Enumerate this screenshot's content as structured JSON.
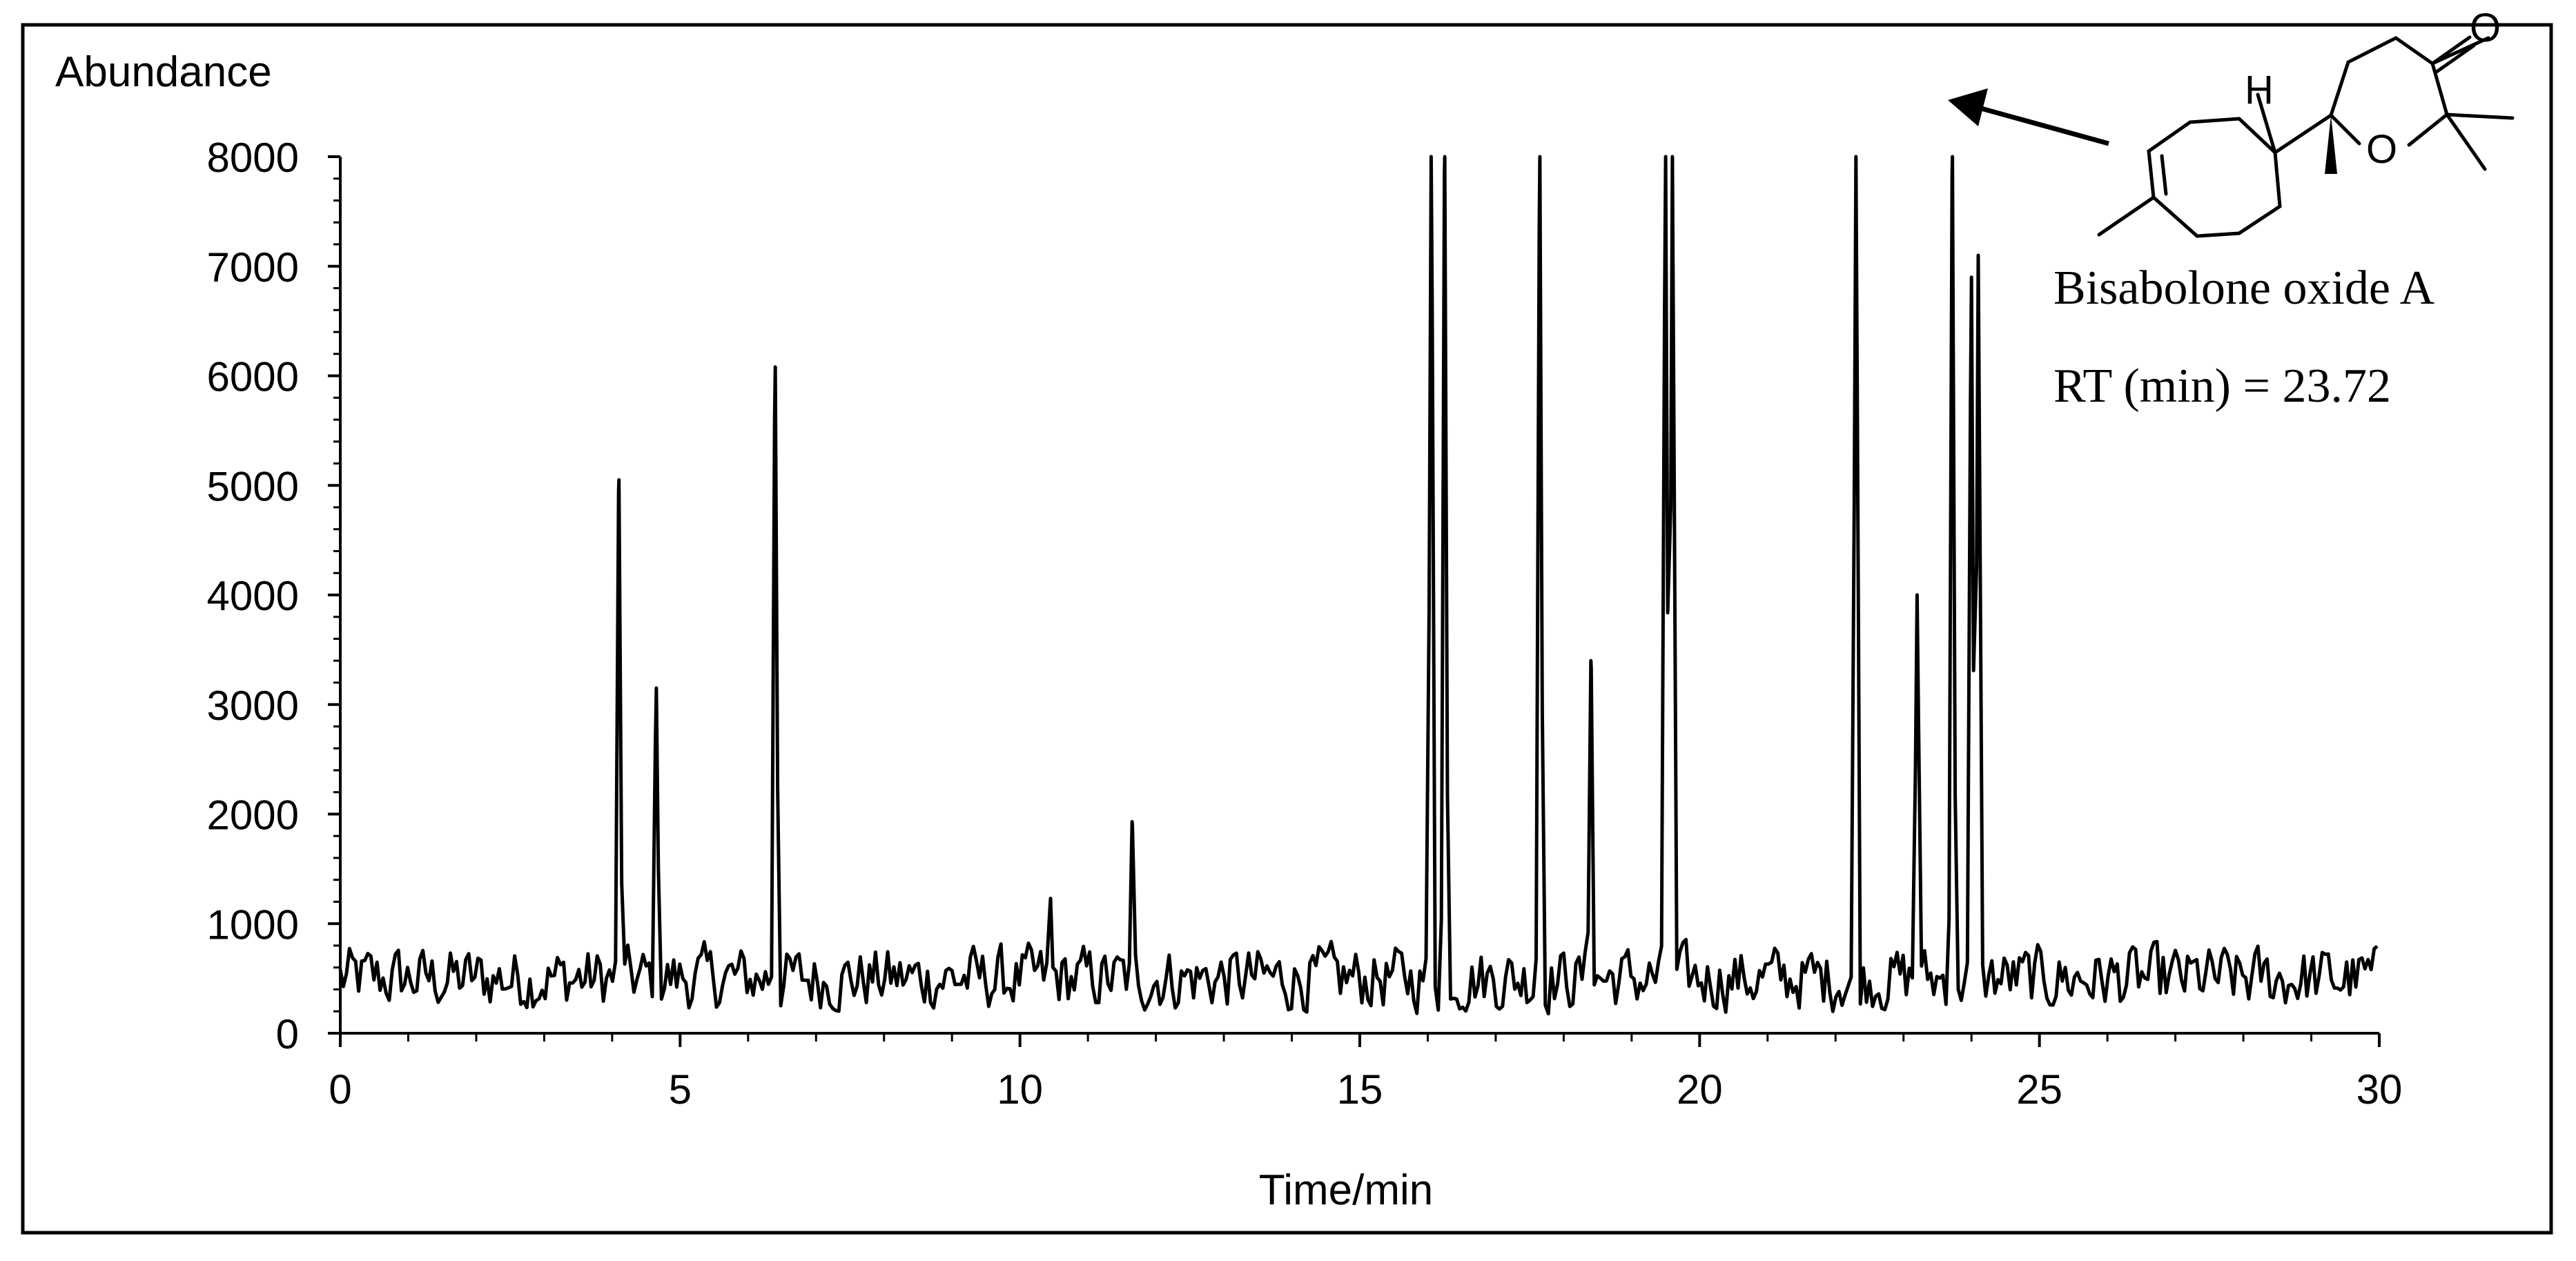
{
  "chart_data": {
    "type": "line",
    "ylabel": "Abundance",
    "xlabel": "Time/min",
    "xlim": [
      0,
      30
    ],
    "ylim": [
      0,
      8000
    ],
    "x_ticks": [
      0,
      5,
      10,
      15,
      20,
      25,
      30
    ],
    "x_tick_labels": [
      "0",
      "5",
      "10",
      "15",
      "20",
      "25",
      "30"
    ],
    "y_ticks": [
      0,
      1000,
      2000,
      3000,
      4000,
      5000,
      6000,
      7000,
      8000
    ],
    "y_tick_labels": [
      "0",
      "1000",
      "2000",
      "3000",
      "4000",
      "5000",
      "6000",
      "7000",
      "8000"
    ],
    "grid": false,
    "legend": "none",
    "line_color": "#000000",
    "baseline_noise_range": [
      100,
      900
    ],
    "peaks": [
      {
        "x": 4.1,
        "y": 5050
      },
      {
        "x": 4.65,
        "y": 3150
      },
      {
        "x": 6.4,
        "y": 6080
      },
      {
        "x": 10.45,
        "y": 1230
      },
      {
        "x": 11.65,
        "y": 1930
      },
      {
        "x": 16.05,
        "y": 8000
      },
      {
        "x": 16.25,
        "y": 8000
      },
      {
        "x": 17.65,
        "y": 8000
      },
      {
        "x": 18.4,
        "y": 3400
      },
      {
        "x": 19.5,
        "y": 8000
      },
      {
        "x": 19.6,
        "y": 8000
      },
      {
        "x": 22.3,
        "y": 8000
      },
      {
        "x": 23.2,
        "y": 4000
      },
      {
        "x": 23.72,
        "y": 8000
      },
      {
        "x": 24.0,
        "y": 6900
      },
      {
        "x": 24.1,
        "y": 7100
      }
    ],
    "annotation": {
      "compound": "Bisabolone oxide A",
      "rt_label": "RT (min) = 23.72",
      "structure_atoms": [
        "H",
        "O",
        "O"
      ]
    }
  }
}
